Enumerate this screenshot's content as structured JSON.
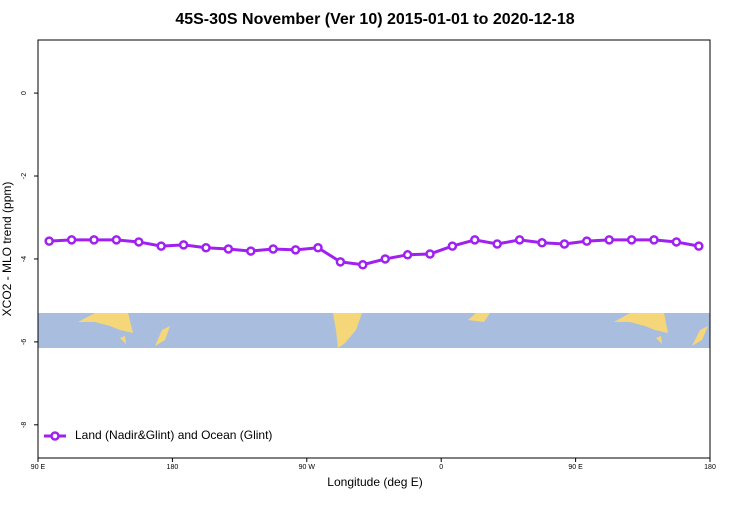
{
  "chart_data": {
    "type": "line",
    "title": "45S-30S November (Ver 10)   2015-01-01 to 2020-12-18",
    "x_label": "Longitude (deg E)",
    "y_label": "XCO2 - MLO trend (ppm)",
    "x": [
      97.5,
      112.5,
      127.5,
      142.5,
      157.5,
      172.5,
      187.5,
      202.5,
      217.5,
      232.5,
      247.5,
      262.5,
      277.5,
      292.5,
      307.5,
      322.5,
      337.5,
      352.5,
      367.5,
      382.5,
      397.5,
      412.5,
      427.5,
      442.5,
      457.5,
      472.5,
      487.5,
      502.5,
      517.5,
      532.5
    ],
    "series": [
      {
        "name": "Land (Nadir&Glint) and Ocean (Glint)",
        "color": "#a020f0",
        "values": [
          -3.57,
          -3.54,
          -3.54,
          -3.54,
          -3.59,
          -3.69,
          -3.66,
          -3.73,
          -3.76,
          -3.81,
          -3.76,
          -3.78,
          -3.73,
          -4.07,
          -4.14,
          -4.0,
          -3.9,
          -3.88,
          -3.69,
          -3.54,
          -3.64,
          -3.54,
          -3.61,
          -3.64,
          -3.57,
          -3.54,
          -3.54,
          -3.54,
          -3.59,
          -3.69
        ]
      }
    ],
    "xlim": [
      90,
      540
    ],
    "xticks": [
      {
        "value": 90,
        "label": "90 E"
      },
      {
        "value": 180,
        "label": "180"
      },
      {
        "value": 270,
        "label": "90 W"
      },
      {
        "value": 360,
        "label": "0"
      },
      {
        "value": 450,
        "label": "90 E"
      },
      {
        "value": 540,
        "label": "180"
      }
    ],
    "ylim": [
      -8.8,
      1.28
    ],
    "yticks": [
      0,
      -2,
      -4,
      -6,
      -8
    ],
    "legend": "bottom-left"
  }
}
